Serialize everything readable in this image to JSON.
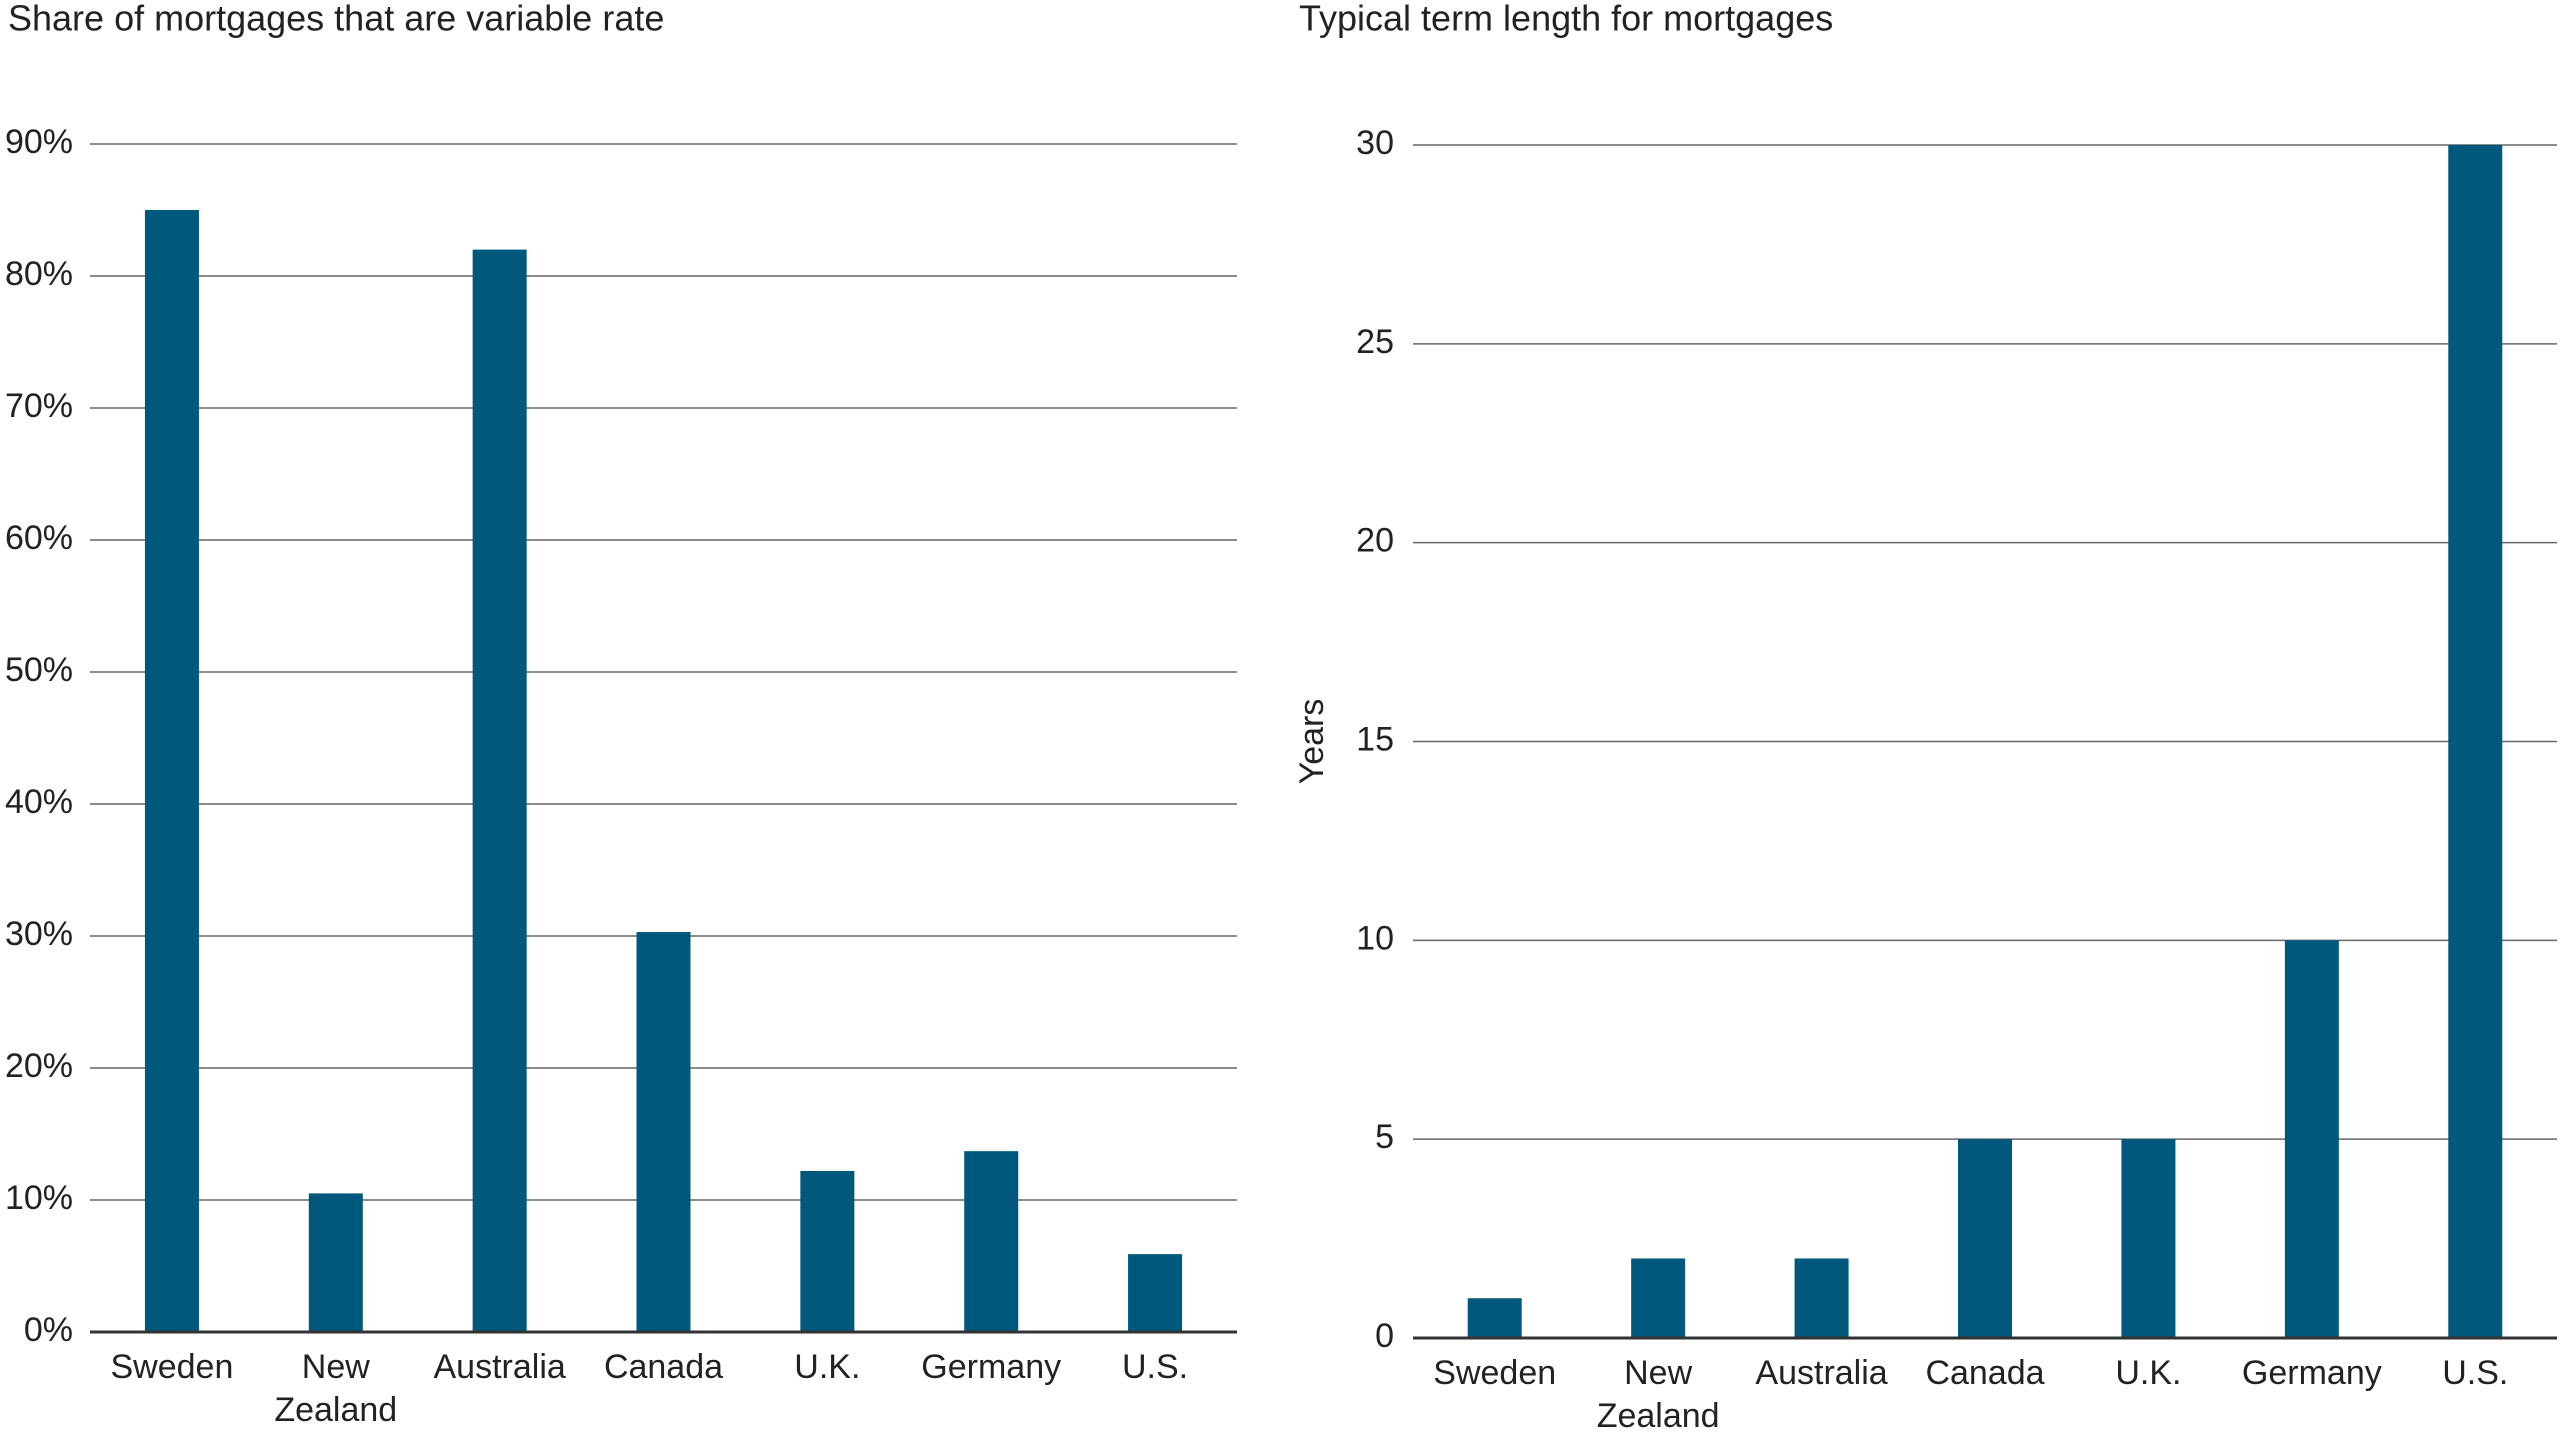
{
  "chart_data": [
    {
      "type": "bar",
      "title": "Share of mortgages that are variable rate",
      "categories": [
        "Sweden",
        "New Zealand",
        "Australia",
        "Canada",
        "U.K.",
        "Germany",
        "U.S."
      ],
      "values": [
        85,
        10.5,
        82,
        30.3,
        12.2,
        13.7,
        5.9
      ],
      "color": "#00587c",
      "ylim": [
        0,
        90
      ],
      "yticks": [
        {
          "value": 0,
          "label": "0%"
        },
        {
          "value": 10,
          "label": "10%"
        },
        {
          "value": 20,
          "label": "20%"
        },
        {
          "value": 30,
          "label": "30%"
        },
        {
          "value": 40,
          "label": "40%"
        },
        {
          "value": 50,
          "label": "50%"
        },
        {
          "value": 60,
          "label": "60%"
        },
        {
          "value": 70,
          "label": "70%"
        },
        {
          "value": 80,
          "label": "80%"
        },
        {
          "value": 90,
          "label": "90%"
        }
      ],
      "grid": true
    },
    {
      "type": "bar",
      "title": "Typical term length for mortgages",
      "ylabel": "Years",
      "categories": [
        "Sweden",
        "New Zealand",
        "Australia",
        "Canada",
        "U.K.",
        "Germany",
        "U.S."
      ],
      "values": [
        1,
        2,
        2,
        5,
        5,
        10,
        30
      ],
      "color": "#00587c",
      "ylim": [
        0,
        30
      ],
      "yticks": [
        0,
        5,
        10,
        15,
        20,
        25,
        30
      ],
      "grid": true
    }
  ]
}
